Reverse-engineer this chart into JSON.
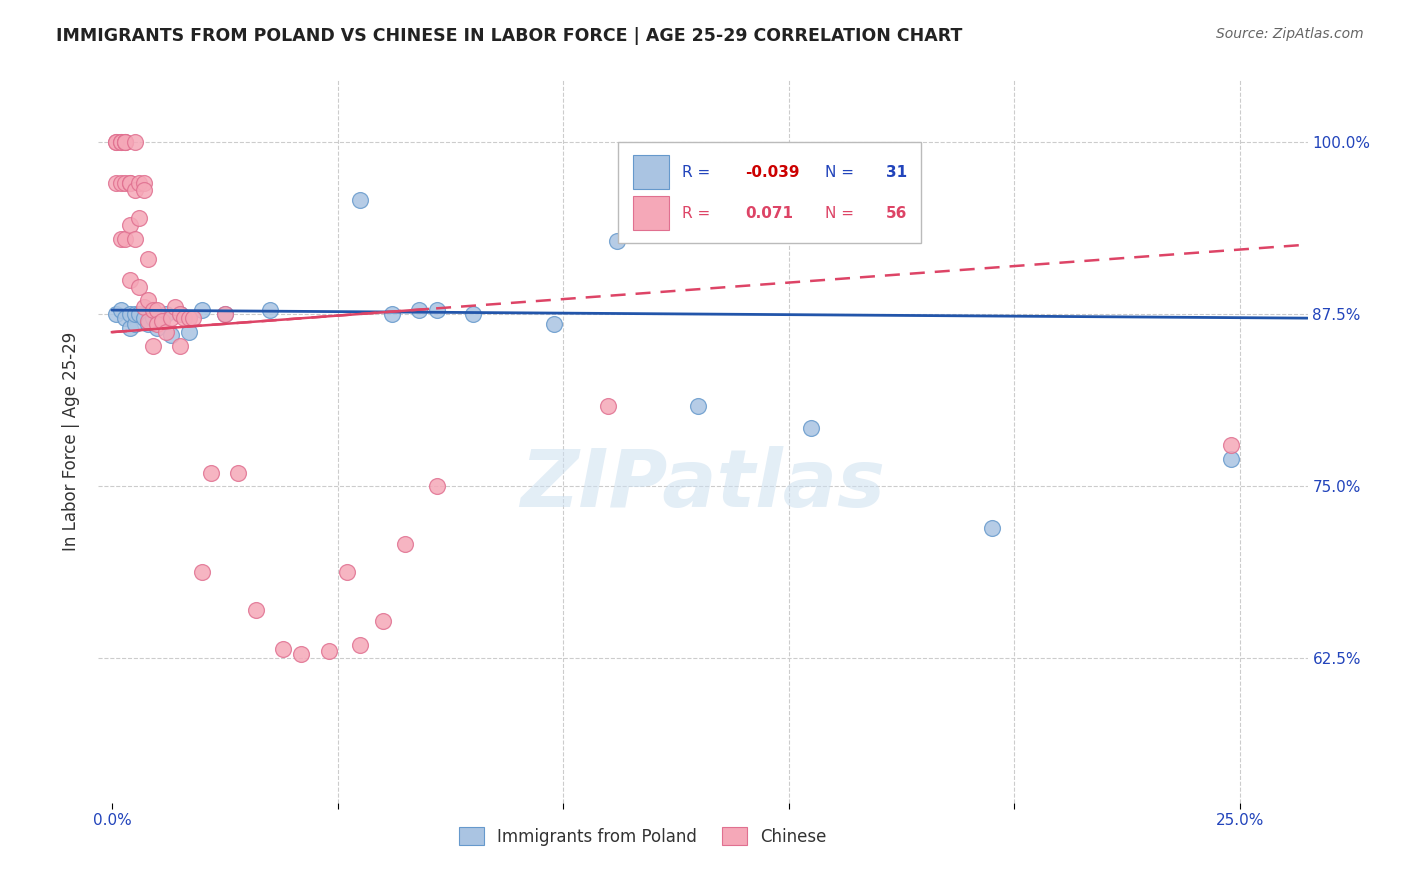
{
  "title": "IMMIGRANTS FROM POLAND VS CHINESE IN LABOR FORCE | AGE 25-29 CORRELATION CHART",
  "source": "Source: ZipAtlas.com",
  "ylabel": "In Labor Force | Age 25-29",
  "poland_color": "#aac4e2",
  "chinese_color": "#f5a8b8",
  "poland_edge": "#6699cc",
  "chinese_edge": "#e07090",
  "trend_poland_color": "#2255aa",
  "trend_chinese_color": "#dd4466",
  "xlim": [
    -0.003,
    0.265
  ],
  "ylim": [
    0.52,
    1.045
  ],
  "x_tick_positions": [
    0.0,
    0.05,
    0.1,
    0.15,
    0.2,
    0.25
  ],
  "y_tick_positions": [
    0.625,
    0.75,
    0.875,
    1.0
  ],
  "y_tick_labels": [
    "62.5%",
    "75.0%",
    "87.5%",
    "100.0%"
  ],
  "x_tick_labels_show": [
    "0.0%",
    "25.0%"
  ],
  "grid_color": "#cccccc",
  "background_color": "#ffffff",
  "poland_x": [
    0.001,
    0.002,
    0.003,
    0.004,
    0.004,
    0.005,
    0.005,
    0.006,
    0.007,
    0.008,
    0.009,
    0.01,
    0.011,
    0.012,
    0.013,
    0.015,
    0.017,
    0.02,
    0.025,
    0.035,
    0.055,
    0.062,
    0.068,
    0.072,
    0.08,
    0.098,
    0.112,
    0.13,
    0.155,
    0.195,
    0.248
  ],
  "poland_y": [
    0.875,
    0.878,
    0.872,
    0.865,
    0.875,
    0.868,
    0.875,
    0.875,
    0.872,
    0.868,
    0.872,
    0.865,
    0.872,
    0.875,
    0.86,
    0.875,
    0.862,
    0.878,
    0.875,
    0.878,
    0.958,
    0.875,
    0.878,
    0.878,
    0.875,
    0.868,
    0.928,
    0.808,
    0.792,
    0.72,
    0.77
  ],
  "chinese_x": [
    0.001,
    0.001,
    0.001,
    0.002,
    0.002,
    0.002,
    0.002,
    0.003,
    0.003,
    0.003,
    0.003,
    0.003,
    0.004,
    0.004,
    0.004,
    0.004,
    0.005,
    0.005,
    0.005,
    0.006,
    0.006,
    0.006,
    0.007,
    0.007,
    0.007,
    0.008,
    0.008,
    0.008,
    0.009,
    0.009,
    0.01,
    0.01,
    0.011,
    0.012,
    0.013,
    0.014,
    0.015,
    0.015,
    0.016,
    0.017,
    0.018,
    0.02,
    0.022,
    0.025,
    0.028,
    0.032,
    0.038,
    0.042,
    0.048,
    0.052,
    0.055,
    0.06,
    0.065,
    0.072,
    0.11,
    0.248
  ],
  "chinese_y": [
    1.0,
    1.0,
    0.97,
    1.0,
    1.0,
    0.97,
    0.93,
    1.0,
    1.0,
    1.0,
    0.97,
    0.93,
    0.97,
    0.97,
    0.94,
    0.9,
    1.0,
    0.965,
    0.93,
    0.97,
    0.945,
    0.895,
    0.97,
    0.965,
    0.88,
    0.915,
    0.885,
    0.87,
    0.878,
    0.852,
    0.878,
    0.868,
    0.87,
    0.862,
    0.872,
    0.88,
    0.875,
    0.852,
    0.872,
    0.872,
    0.872,
    0.688,
    0.76,
    0.875,
    0.76,
    0.66,
    0.632,
    0.628,
    0.63,
    0.688,
    0.635,
    0.652,
    0.708,
    0.75,
    0.808,
    0.78
  ],
  "watermark_text": "ZIPatlas",
  "legend_poland_R": "-0.039",
  "legend_poland_N": "31",
  "legend_chinese_R": "0.071",
  "legend_chinese_N": "56",
  "trend_poland_slope": -0.039,
  "trend_polish_intercept": 0.878,
  "trend_chinese_slope": 0.071,
  "trend_chinese_intercept": 0.862
}
